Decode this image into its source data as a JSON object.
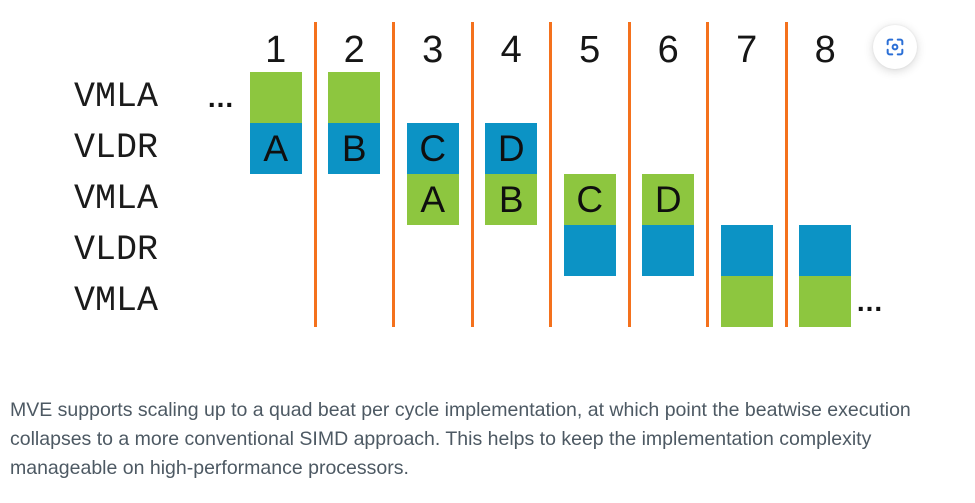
{
  "diagram": {
    "cycle_numbers": [
      "1",
      "2",
      "3",
      "4",
      "5",
      "6",
      "7",
      "8"
    ],
    "row_labels": [
      "VMLA",
      "VLDR",
      "VMLA",
      "VLDR",
      "VMLA"
    ],
    "leading_ellipsis": "...",
    "trailing_ellipsis": "...",
    "blocks": [
      {
        "cycle": 1,
        "row": 1,
        "color": "green",
        "label": ""
      },
      {
        "cycle": 1,
        "row": 2,
        "color": "blue",
        "label": "A"
      },
      {
        "cycle": 2,
        "row": 1,
        "color": "green",
        "label": ""
      },
      {
        "cycle": 2,
        "row": 2,
        "color": "blue",
        "label": "B"
      },
      {
        "cycle": 3,
        "row": 2,
        "color": "blue",
        "label": "C"
      },
      {
        "cycle": 3,
        "row": 3,
        "color": "green",
        "label": "A"
      },
      {
        "cycle": 4,
        "row": 2,
        "color": "blue",
        "label": "D"
      },
      {
        "cycle": 4,
        "row": 3,
        "color": "green",
        "label": "B"
      },
      {
        "cycle": 5,
        "row": 3,
        "color": "green",
        "label": "C"
      },
      {
        "cycle": 5,
        "row": 4,
        "color": "blue",
        "label": ""
      },
      {
        "cycle": 6,
        "row": 3,
        "color": "green",
        "label": "D"
      },
      {
        "cycle": 6,
        "row": 4,
        "color": "blue",
        "label": ""
      },
      {
        "cycle": 7,
        "row": 4,
        "color": "blue",
        "label": ""
      },
      {
        "cycle": 7,
        "row": 5,
        "color": "green",
        "label": ""
      },
      {
        "cycle": 8,
        "row": 4,
        "color": "blue",
        "label": ""
      },
      {
        "cycle": 8,
        "row": 5,
        "color": "green",
        "label": ""
      }
    ],
    "colors": {
      "vmla_green": "#8DC63F",
      "vldr_blue": "#0C93C5",
      "divider_orange": "#F4711D",
      "label_text": "#1B1B1B",
      "zoom_icon_blue": "#2B6FD6"
    }
  },
  "caption": {
    "color": "#4D5963",
    "lines": [
      "MVE supports scaling up to a quad beat per cycle implementation, at which point the beatwise execution",
      "collapses to a more conventional SIMD approach. This helps to keep the implementation complexity",
      "manageable on high-performance processors."
    ]
  }
}
